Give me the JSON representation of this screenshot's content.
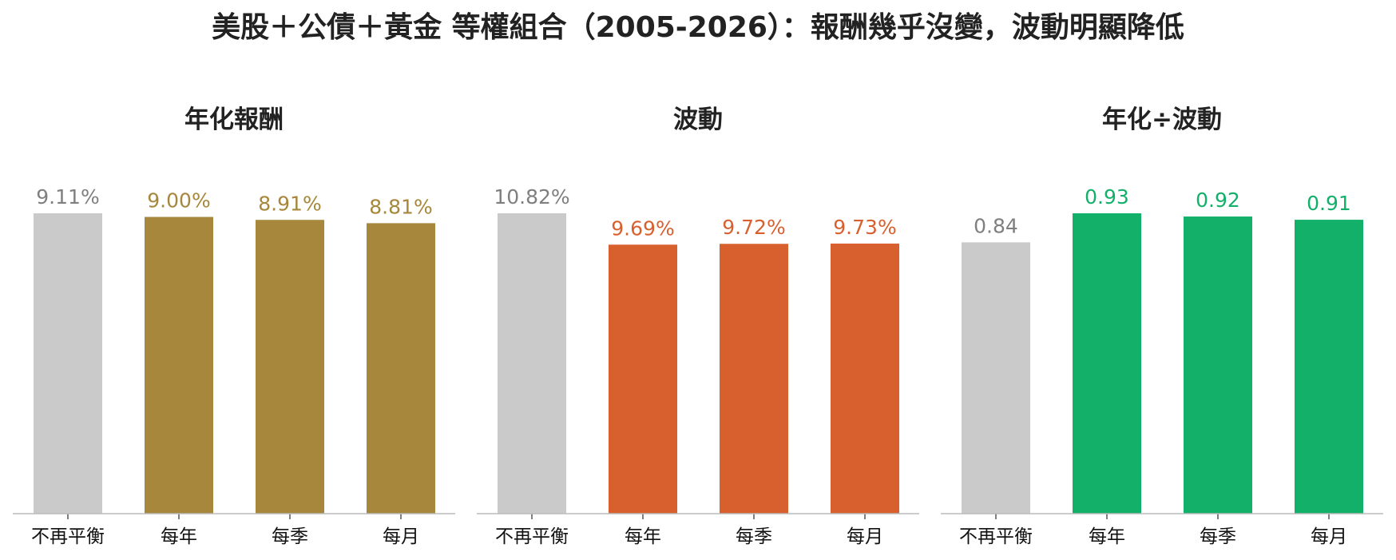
{
  "title": "美股＋公債＋黃金 等權組合（2005-2026）：報酬幾乎沒變，波動明顯降低",
  "colors": {
    "baseline": "#c9cac9",
    "baseline_label": "#7f7f7f",
    "panel_accents": [
      "#a6873b",
      "#d8602f",
      "#13b06a"
    ]
  },
  "chart_data": [
    {
      "type": "bar",
      "title": "年化報酬",
      "categories": [
        "不再平衡",
        "每年",
        "每季",
        "每月"
      ],
      "values": [
        9.11,
        9.0,
        8.91,
        8.81
      ],
      "value_labels": [
        "9.11%",
        "9.00%",
        "8.91%",
        "8.81%"
      ],
      "ylim": [
        0,
        9.11
      ],
      "grid": false,
      "legend": "none"
    },
    {
      "type": "bar",
      "title": "波動",
      "categories": [
        "不再平衡",
        "每年",
        "每季",
        "每月"
      ],
      "values": [
        10.82,
        9.69,
        9.72,
        9.73
      ],
      "value_labels": [
        "10.82%",
        "9.69%",
        "9.72%",
        "9.73%"
      ],
      "ylim": [
        0,
        10.82
      ],
      "grid": false,
      "legend": "none"
    },
    {
      "type": "bar",
      "title": "年化÷波動",
      "categories": [
        "不再平衡",
        "每年",
        "每季",
        "每月"
      ],
      "values": [
        0.84,
        0.93,
        0.92,
        0.91
      ],
      "value_labels": [
        "0.84",
        "0.93",
        "0.92",
        "0.91"
      ],
      "ylim": [
        0,
        0.93
      ],
      "grid": false,
      "legend": "none"
    }
  ]
}
